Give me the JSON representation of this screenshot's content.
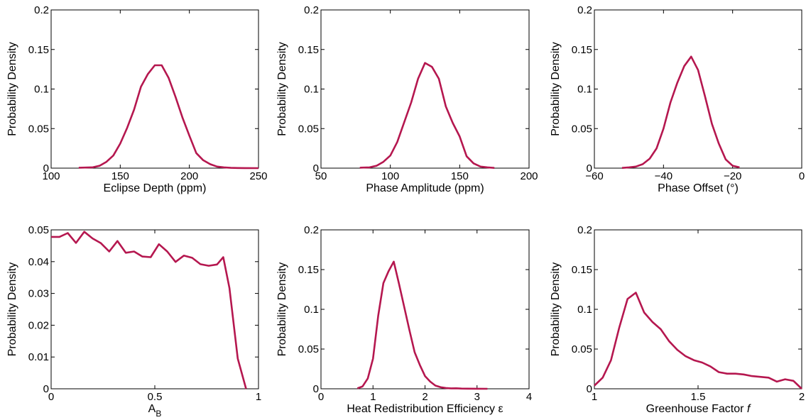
{
  "figure": {
    "line_color": "#b5174f",
    "axis_color": "#000000"
  },
  "chart_data": [
    {
      "type": "line",
      "xlabel": "Eclipse Depth (ppm)",
      "ylabel": "Probability Density",
      "xlim": [
        100,
        250
      ],
      "ylim": [
        0,
        0.2
      ],
      "xticks": [
        100,
        150,
        200,
        250
      ],
      "xtick_labels": [
        "100",
        "150",
        "200",
        "250"
      ],
      "yticks": [
        0,
        0.05,
        0.1,
        0.15,
        0.2
      ],
      "ytick_labels": [
        "0",
        "0.05",
        "0.1",
        "0.15",
        "0.2"
      ],
      "x": [
        120,
        130,
        135,
        140,
        145,
        150,
        155,
        160,
        165,
        170,
        175,
        180,
        185,
        190,
        195,
        200,
        205,
        210,
        215,
        220,
        225,
        230,
        235,
        240,
        250
      ],
      "y": [
        0.0005,
        0.001,
        0.003,
        0.008,
        0.016,
        0.031,
        0.051,
        0.074,
        0.103,
        0.119,
        0.13,
        0.13,
        0.114,
        0.09,
        0.064,
        0.041,
        0.019,
        0.01,
        0.005,
        0.002,
        0.001,
        0.0004,
        0.0002,
        0.0001,
        0
      ]
    },
    {
      "type": "line",
      "xlabel": "Phase Amplitude (ppm)",
      "ylabel": "Probability Density",
      "xlim": [
        50,
        200
      ],
      "ylim": [
        0,
        0.2
      ],
      "xticks": [
        50,
        100,
        150,
        200
      ],
      "xtick_labels": [
        "50",
        "100",
        "150",
        "200"
      ],
      "yticks": [
        0,
        0.05,
        0.1,
        0.15,
        0.2
      ],
      "ytick_labels": [
        "0",
        "0.05",
        "0.1",
        "0.15",
        "0.2"
      ],
      "x": [
        78,
        85,
        90,
        95,
        100,
        105,
        110,
        115,
        120,
        125,
        130,
        135,
        140,
        145,
        150,
        155,
        160,
        165,
        170,
        175
      ],
      "y": [
        0.0005,
        0.001,
        0.003,
        0.008,
        0.016,
        0.033,
        0.058,
        0.083,
        0.113,
        0.133,
        0.128,
        0.113,
        0.078,
        0.057,
        0.04,
        0.015,
        0.006,
        0.002,
        0.001,
        0.0003
      ]
    },
    {
      "type": "line",
      "xlabel": "Phase Offset (°)",
      "ylabel": "Probability Density",
      "xlim": [
        -60,
        0
      ],
      "ylim": [
        0,
        0.2
      ],
      "xticks": [
        -60,
        -40,
        -20,
        0
      ],
      "xtick_labels": [
        "−60",
        "−40",
        "−20",
        "0"
      ],
      "yticks": [
        0,
        0.05,
        0.1,
        0.15,
        0.2
      ],
      "ytick_labels": [
        "0",
        "0.05",
        "0.1",
        "0.15",
        "0.2"
      ],
      "x": [
        -52,
        -50,
        -48,
        -46,
        -44,
        -42,
        -40,
        -38,
        -36,
        -34,
        -32,
        -30,
        -28,
        -26,
        -24,
        -22,
        -20,
        -18
      ],
      "y": [
        0.0003,
        0.001,
        0.002,
        0.005,
        0.012,
        0.025,
        0.05,
        0.083,
        0.108,
        0.129,
        0.141,
        0.124,
        0.091,
        0.056,
        0.031,
        0.011,
        0.003,
        0.001
      ]
    },
    {
      "type": "line",
      "xlabel": "A",
      "xlabel_sub": "B",
      "ylabel": "Probability Density",
      "xlim": [
        0,
        1
      ],
      "ylim": [
        0,
        0.05
      ],
      "xticks": [
        0,
        0.5,
        1
      ],
      "xtick_labels": [
        "0",
        "0.5",
        "1"
      ],
      "yticks": [
        0,
        0.01,
        0.02,
        0.03,
        0.04,
        0.05
      ],
      "ytick_labels": [
        "0",
        "0.01",
        "0.02",
        "0.03",
        "0.04",
        "0.05"
      ],
      "x": [
        0,
        0.04,
        0.08,
        0.12,
        0.16,
        0.2,
        0.24,
        0.28,
        0.32,
        0.36,
        0.4,
        0.44,
        0.48,
        0.52,
        0.56,
        0.6,
        0.64,
        0.68,
        0.72,
        0.76,
        0.8,
        0.83,
        0.86,
        0.9,
        0.94
      ],
      "y": [
        0.0478,
        0.0478,
        0.049,
        0.0459,
        0.0494,
        0.0473,
        0.0458,
        0.0432,
        0.0465,
        0.0428,
        0.0432,
        0.0416,
        0.0414,
        0.0455,
        0.0432,
        0.0399,
        0.0419,
        0.0412,
        0.0392,
        0.0387,
        0.0391,
        0.0414,
        0.0317,
        0.0095,
        0.0
      ]
    },
    {
      "type": "line",
      "xlabel": "Heat Redistribution Efficiency ε",
      "ylabel": "Probability Density",
      "xlim": [
        0,
        4
      ],
      "ylim": [
        0,
        0.2
      ],
      "xticks": [
        0,
        1,
        2,
        3,
        4
      ],
      "xtick_labels": [
        "0",
        "1",
        "2",
        "3",
        "4"
      ],
      "yticks": [
        0,
        0.05,
        0.1,
        0.15,
        0.2
      ],
      "ytick_labels": [
        "0",
        "0.05",
        "0.1",
        "0.15",
        "0.2"
      ],
      "x": [
        0.7,
        0.8,
        0.9,
        1.0,
        1.1,
        1.2,
        1.3,
        1.4,
        1.5,
        1.6,
        1.7,
        1.8,
        1.9,
        2.0,
        2.1,
        2.2,
        2.3,
        2.4,
        2.5,
        2.6,
        2.7,
        2.8,
        3.0,
        3.2
      ],
      "y": [
        0.0005,
        0.003,
        0.013,
        0.038,
        0.092,
        0.133,
        0.148,
        0.16,
        0.132,
        0.103,
        0.074,
        0.046,
        0.03,
        0.016,
        0.009,
        0.004,
        0.002,
        0.001,
        0.0005,
        0.0006,
        0.0003,
        0.0002,
        0.0001,
        0
      ]
    },
    {
      "type": "line",
      "xlabel": "Greenhouse Factor",
      "xlabel_italic": "f",
      "ylabel": "Probability Density",
      "xlim": [
        1,
        2
      ],
      "ylim": [
        0,
        0.2
      ],
      "xticks": [
        1,
        1.5,
        2
      ],
      "xtick_labels": [
        "1",
        "1.5",
        "2"
      ],
      "yticks": [
        0,
        0.05,
        0.1,
        0.15,
        0.2
      ],
      "ytick_labels": [
        "0",
        "0.05",
        "0.1",
        "0.15",
        "0.2"
      ],
      "x": [
        1.0,
        1.04,
        1.08,
        1.12,
        1.16,
        1.2,
        1.24,
        1.28,
        1.32,
        1.36,
        1.4,
        1.44,
        1.48,
        1.52,
        1.56,
        1.6,
        1.64,
        1.68,
        1.72,
        1.76,
        1.8,
        1.84,
        1.88,
        1.92,
        1.96,
        2.0
      ],
      "y": [
        0.004,
        0.014,
        0.036,
        0.077,
        0.113,
        0.121,
        0.096,
        0.084,
        0.075,
        0.06,
        0.049,
        0.041,
        0.036,
        0.033,
        0.028,
        0.021,
        0.019,
        0.019,
        0.018,
        0.016,
        0.015,
        0.014,
        0.009,
        0.012,
        0.01,
        0.0
      ]
    }
  ]
}
